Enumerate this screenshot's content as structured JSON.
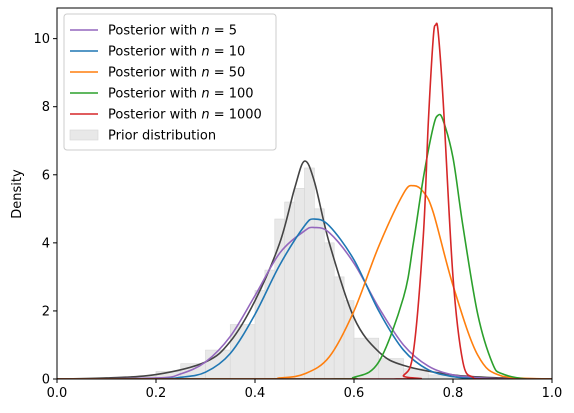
{
  "chart_data": {
    "type": "line",
    "title": "",
    "xlabel": "",
    "ylabel": "Density",
    "xlim": [
      0.0,
      1.0
    ],
    "ylim": [
      0,
      10.9
    ],
    "xticks": [
      "0.0",
      "0.2",
      "0.4",
      "0.6",
      "0.8",
      "1.0"
    ],
    "yticks": [
      "0",
      "2",
      "4",
      "6",
      "8",
      "10"
    ],
    "grid": false,
    "legend": {
      "position": "top-left",
      "entries": [
        {
          "prefix": "Posterior with ",
          "var": "n",
          "eq": " = ",
          "val": "5",
          "color": "#9467bd",
          "kind": "line"
        },
        {
          "prefix": "Posterior with ",
          "var": "n",
          "eq": " = ",
          "val": "10",
          "color": "#1f77b4",
          "kind": "line"
        },
        {
          "prefix": "Posterior with ",
          "var": "n",
          "eq": " = ",
          "val": "50",
          "color": "#ff7f0e",
          "kind": "line"
        },
        {
          "prefix": "Posterior with ",
          "var": "n",
          "eq": " = ",
          "val": "100",
          "color": "#2ca02c",
          "kind": "line"
        },
        {
          "prefix": "Posterior with ",
          "var": "n",
          "eq": " = ",
          "val": "1000",
          "color": "#d62728",
          "kind": "line"
        },
        {
          "label": "Prior distribution",
          "color": "#e8e8e8",
          "kind": "patch"
        }
      ]
    },
    "series": [
      {
        "name": "Posterior with n = 5",
        "color": "#9467bd",
        "x": [
          0.0,
          0.2,
          0.25,
          0.3,
          0.35,
          0.4,
          0.45,
          0.5,
          0.52,
          0.55,
          0.6,
          0.65,
          0.7,
          0.75,
          0.8,
          0.85,
          0.9,
          1.0
        ],
        "y": [
          0.0,
          0.03,
          0.15,
          0.5,
          1.25,
          2.45,
          3.7,
          4.35,
          4.45,
          4.3,
          3.4,
          2.1,
          1.0,
          0.38,
          0.12,
          0.04,
          0.01,
          0.0
        ]
      },
      {
        "name": "Posterior with n = 10",
        "color": "#1f77b4",
        "x": [
          0.0,
          0.2,
          0.25,
          0.3,
          0.35,
          0.4,
          0.45,
          0.5,
          0.52,
          0.55,
          0.6,
          0.65,
          0.7,
          0.75,
          0.8,
          0.85,
          0.9,
          1.0
        ],
        "y": [
          0.0,
          0.0,
          0.05,
          0.2,
          0.75,
          1.9,
          3.35,
          4.5,
          4.7,
          4.5,
          3.5,
          2.0,
          0.85,
          0.27,
          0.07,
          0.01,
          0.0,
          0.0
        ]
      },
      {
        "name": "Posterior with n = 50",
        "color": "#ff7f0e",
        "x": [
          0.0,
          0.4,
          0.45,
          0.5,
          0.55,
          0.6,
          0.65,
          0.7,
          0.72,
          0.74,
          0.76,
          0.8,
          0.85,
          0.9,
          1.0
        ],
        "y": [
          0.0,
          0.0,
          0.03,
          0.15,
          0.65,
          2.0,
          3.9,
          5.45,
          5.68,
          5.5,
          4.9,
          2.75,
          0.7,
          0.08,
          0.0
        ]
      },
      {
        "name": "Posterior with n = 100",
        "color": "#2ca02c",
        "x": [
          0.0,
          0.55,
          0.6,
          0.65,
          0.7,
          0.72,
          0.74,
          0.76,
          0.77,
          0.78,
          0.8,
          0.82,
          0.85,
          0.88,
          0.9,
          0.95,
          1.0
        ],
        "y": [
          0.0,
          0.0,
          0.05,
          0.5,
          2.4,
          4.0,
          5.9,
          7.4,
          7.75,
          7.6,
          6.5,
          4.5,
          1.9,
          0.45,
          0.15,
          0.0,
          0.0
        ]
      },
      {
        "name": "Posterior with n = 1000",
        "color": "#d62728",
        "x": [
          0.0,
          0.68,
          0.7,
          0.72,
          0.74,
          0.75,
          0.76,
          0.765,
          0.77,
          0.78,
          0.8,
          0.82,
          0.84,
          0.86,
          1.0
        ],
        "y": [
          0.0,
          0.0,
          0.1,
          0.8,
          4.2,
          7.5,
          10.0,
          10.4,
          10.2,
          8.2,
          3.0,
          0.5,
          0.05,
          0.0,
          0.0
        ]
      },
      {
        "name": "",
        "color": "#444444",
        "x": [
          0.0,
          0.1,
          0.2,
          0.3,
          0.35,
          0.4,
          0.45,
          0.48,
          0.5,
          0.52,
          0.55,
          0.6,
          0.65,
          0.7,
          0.8,
          0.9,
          1.0
        ],
        "y": [
          0.0,
          0.03,
          0.13,
          0.5,
          1.1,
          2.3,
          4.0,
          5.6,
          6.4,
          5.8,
          4.0,
          1.8,
          0.8,
          0.4,
          0.12,
          0.03,
          0.0
        ]
      }
    ],
    "prior_histogram": {
      "color": "#e8e8e8",
      "edges": [
        0.15,
        0.2,
        0.25,
        0.3,
        0.35,
        0.4,
        0.42,
        0.44,
        0.46,
        0.48,
        0.5,
        0.52,
        0.54,
        0.56,
        0.58,
        0.6,
        0.65,
        0.7,
        0.75,
        0.8
      ],
      "values": [
        0.08,
        0.22,
        0.45,
        0.85,
        1.6,
        2.6,
        3.2,
        4.7,
        5.2,
        5.6,
        6.2,
        5.0,
        4.0,
        3.0,
        2.3,
        1.2,
        0.6,
        0.3,
        0.12
      ]
    }
  }
}
